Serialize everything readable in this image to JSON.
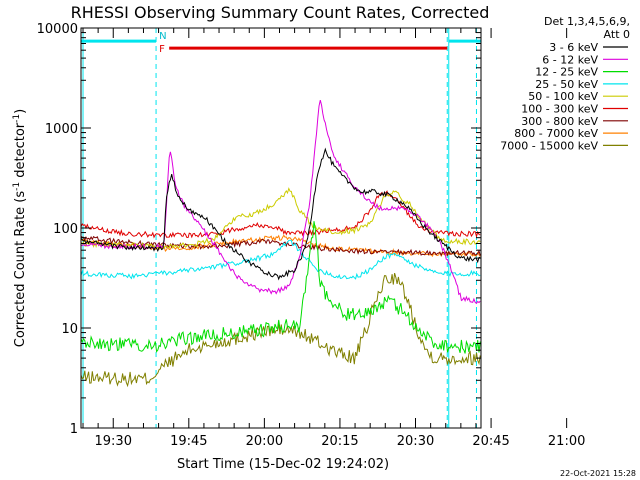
{
  "chart_data": {
    "type": "line",
    "title": "RHESSI Observing Summary Count Rates, Corrected",
    "xlabel": "Start Time (15-Dec-02 19:24:02)",
    "ylabel_main": "Corrected Count Rate (s",
    "ylabel_sup1": "-1",
    "ylabel_mid": " detector",
    "ylabel_sup2": "-1",
    "ylabel_end": ")",
    "y_scale": "log",
    "ylim": [
      1,
      10000
    ],
    "xlim_minutes": [
      19.6,
      99.0
    ],
    "x_ticks": [
      {
        "t": 26,
        "label": "19:30"
      },
      {
        "t": 41,
        "label": "19:45"
      },
      {
        "t": 56,
        "label": "20:00"
      },
      {
        "t": 71,
        "label": "20:15"
      },
      {
        "t": 86,
        "label": "20:30"
      },
      {
        "t": 101,
        "label": "20:45"
      },
      {
        "t": 116,
        "label": "21:00"
      }
    ],
    "y_ticks": [
      {
        "v": 1,
        "label": "1"
      },
      {
        "v": 10,
        "label": "10"
      },
      {
        "v": 100,
        "label": "100"
      },
      {
        "v": 1000,
        "label": "1000"
      },
      {
        "v": 10000,
        "label": "10000"
      }
    ],
    "legend_header_1": "Det 1,3,4,5,6,9,",
    "legend_header_2": "Att 0",
    "legend_position": "right",
    "series": [
      {
        "name": "3 - 6 keV",
        "color": "#000000",
        "points": [
          [
            19.6,
            75
          ],
          [
            24,
            68
          ],
          [
            29,
            64
          ],
          [
            33,
            62
          ],
          [
            36,
            62
          ],
          [
            36.5,
            200
          ],
          [
            37.5,
            340
          ],
          [
            39,
            200
          ],
          [
            41,
            150
          ],
          [
            44,
            130
          ],
          [
            47,
            85
          ],
          [
            50,
            60
          ],
          [
            53,
            45
          ],
          [
            56,
            37
          ],
          [
            59,
            32
          ],
          [
            62,
            38
          ],
          [
            64,
            60
          ],
          [
            65,
            100
          ],
          [
            66.5,
            350
          ],
          [
            68,
            600
          ],
          [
            70,
            400
          ],
          [
            72,
            310
          ],
          [
            75,
            230
          ],
          [
            78,
            230
          ],
          [
            81,
            210
          ],
          [
            84,
            170
          ],
          [
            86,
            130
          ],
          [
            88,
            100
          ],
          [
            90,
            80
          ],
          [
            93,
            60
          ],
          [
            95,
            50
          ],
          [
            99,
            48
          ]
        ]
      },
      {
        "name": "6 - 12 keV",
        "color": "#dd00dd",
        "points": [
          [
            19.6,
            70
          ],
          [
            25,
            66
          ],
          [
            31,
            65
          ],
          [
            36,
            66
          ],
          [
            36.5,
            150
          ],
          [
            37.2,
            630
          ],
          [
            38.5,
            250
          ],
          [
            40,
            170
          ],
          [
            43,
            110
          ],
          [
            46,
            70
          ],
          [
            49,
            40
          ],
          [
            52,
            28
          ],
          [
            55,
            24
          ],
          [
            58,
            23
          ],
          [
            61,
            26
          ],
          [
            63,
            50
          ],
          [
            65,
            180
          ],
          [
            67,
            1950
          ],
          [
            68.5,
            900
          ],
          [
            70,
            500
          ],
          [
            73,
            300
          ],
          [
            76,
            200
          ],
          [
            79,
            155
          ],
          [
            82,
            160
          ],
          [
            85,
            150
          ],
          [
            88,
            110
          ],
          [
            91,
            70
          ],
          [
            93,
            40
          ],
          [
            95,
            20
          ],
          [
            99,
            18
          ]
        ]
      },
      {
        "name": "12 - 25 keV",
        "color": "#00dd00",
        "points": [
          [
            19.6,
            7.5
          ],
          [
            24,
            7
          ],
          [
            29,
            6.8
          ],
          [
            36,
            6.8
          ],
          [
            37.5,
            7.2
          ],
          [
            41,
            8
          ],
          [
            46,
            8.5
          ],
          [
            51,
            9
          ],
          [
            55,
            9.5
          ],
          [
            58,
            10
          ],
          [
            61,
            11
          ],
          [
            63,
            10
          ],
          [
            64.5,
            35
          ],
          [
            66,
            130
          ],
          [
            67,
            30
          ],
          [
            69,
            18
          ],
          [
            72,
            14
          ],
          [
            75,
            13
          ],
          [
            78,
            16
          ],
          [
            81,
            18.5
          ],
          [
            84,
            14
          ],
          [
            87,
            9
          ],
          [
            90,
            7
          ],
          [
            94,
            6.5
          ],
          [
            99,
            6.5
          ]
        ]
      },
      {
        "name": "25 - 50 keV",
        "color": "#00e5ee",
        "points": [
          [
            19.6,
            35
          ],
          [
            25,
            34
          ],
          [
            30,
            33
          ],
          [
            35,
            35
          ],
          [
            40,
            37
          ],
          [
            45,
            40
          ],
          [
            50,
            44
          ],
          [
            55,
            50
          ],
          [
            58,
            55
          ],
          [
            61,
            75
          ],
          [
            63,
            60
          ],
          [
            66,
            40
          ],
          [
            70,
            33
          ],
          [
            74,
            32
          ],
          [
            77,
            38
          ],
          [
            80,
            52
          ],
          [
            82,
            55
          ],
          [
            85,
            45
          ],
          [
            88,
            38
          ],
          [
            91,
            35
          ],
          [
            99,
            35
          ]
        ]
      },
      {
        "name": "50 - 100 keV",
        "color": "#cccc00",
        "points": [
          [
            19.6,
            70
          ],
          [
            25,
            68
          ],
          [
            30,
            67
          ],
          [
            36,
            66
          ],
          [
            42,
            68
          ],
          [
            46,
            78
          ],
          [
            50,
            125
          ],
          [
            54,
            140
          ],
          [
            58,
            175
          ],
          [
            61,
            245
          ],
          [
            63,
            150
          ],
          [
            66,
            100
          ],
          [
            70,
            90
          ],
          [
            74,
            95
          ],
          [
            77,
            110
          ],
          [
            80,
            215
          ],
          [
            82,
            225
          ],
          [
            85,
            170
          ],
          [
            88,
            110
          ],
          [
            91,
            75
          ],
          [
            99,
            72
          ]
        ]
      },
      {
        "name": "100 - 300 keV",
        "color": "#e00000",
        "points": [
          [
            19.6,
            105
          ],
          [
            24,
            95
          ],
          [
            29,
            88
          ],
          [
            36,
            85
          ],
          [
            42,
            85
          ],
          [
            47,
            88
          ],
          [
            51,
            100
          ],
          [
            55,
            108
          ],
          [
            58,
            102
          ],
          [
            61,
            88
          ],
          [
            65,
            90
          ],
          [
            70,
            95
          ],
          [
            74,
            102
          ],
          [
            77,
            150
          ],
          [
            79,
            225
          ],
          [
            81,
            220
          ],
          [
            84,
            150
          ],
          [
            87,
            100
          ],
          [
            90,
            90
          ],
          [
            93,
            88
          ],
          [
            99,
            87
          ]
        ]
      },
      {
        "name": "300 - 800 keV",
        "color": "#7f0000",
        "points": [
          [
            19.6,
            80
          ],
          [
            24,
            76
          ],
          [
            29,
            72
          ],
          [
            36,
            68
          ],
          [
            42,
            65
          ],
          [
            47,
            66
          ],
          [
            52,
            70
          ],
          [
            56,
            73
          ],
          [
            60,
            70
          ],
          [
            64,
            65
          ],
          [
            68,
            62
          ],
          [
            72,
            60
          ],
          [
            76,
            58
          ],
          [
            80,
            57
          ],
          [
            85,
            57
          ],
          [
            90,
            56
          ],
          [
            99,
            56
          ]
        ]
      },
      {
        "name": "800 - 7000 keV",
        "color": "#ff8000",
        "points": [
          [
            19.6,
            77
          ],
          [
            24,
            70
          ],
          [
            29,
            66
          ],
          [
            36,
            62
          ],
          [
            42,
            64
          ],
          [
            47,
            70
          ],
          [
            52,
            75
          ],
          [
            56,
            78
          ],
          [
            60,
            80
          ],
          [
            63,
            76
          ],
          [
            66,
            68
          ],
          [
            70,
            63
          ],
          [
            74,
            60
          ],
          [
            78,
            58
          ],
          [
            82,
            57
          ],
          [
            86,
            56
          ],
          [
            90,
            55
          ],
          [
            99,
            55
          ]
        ]
      },
      {
        "name": "7000 - 15000 keV",
        "color": "#808000",
        "points": [
          [
            19.6,
            3.2
          ],
          [
            24,
            3.2
          ],
          [
            29,
            3.1
          ],
          [
            33,
            3.1
          ],
          [
            37,
            4.5
          ],
          [
            41,
            6
          ],
          [
            46,
            7
          ],
          [
            51,
            8
          ],
          [
            55,
            9
          ],
          [
            58,
            9.5
          ],
          [
            61,
            9.5
          ],
          [
            64,
            8.5
          ],
          [
            67,
            7
          ],
          [
            71,
            5.5
          ],
          [
            74,
            5
          ],
          [
            76,
            9
          ],
          [
            78,
            18
          ],
          [
            80,
            31
          ],
          [
            82,
            32
          ],
          [
            84,
            22
          ],
          [
            86,
            11
          ],
          [
            88,
            6
          ],
          [
            90,
            5
          ],
          [
            94,
            5
          ],
          [
            99,
            5
          ]
        ]
      }
    ],
    "annotations": {
      "flare_flag_label": "F",
      "flare_flag_range": [
        37.1,
        92.3
      ],
      "night_flag_label": "N",
      "night_flag_ranges": [
        [
          19.6,
          34.5
        ],
        [
          92.6,
          99.0
        ]
      ],
      "flag_level": 6300,
      "boundaries_solid": [
        20.0,
        92.6
      ],
      "boundaries_dashed": [
        34.5,
        92.3,
        98.1
      ]
    },
    "timestamp": "22-Oct-2021 15:28"
  }
}
